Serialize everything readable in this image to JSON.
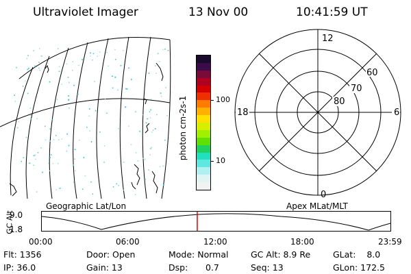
{
  "header": {
    "instrument": "Ultraviolet Imager",
    "date": "13 Nov 00",
    "time": "10:41:59 UT"
  },
  "left_panel": {
    "label": "Geographic Lat/Lon"
  },
  "colorbar": {
    "label": "photon cm-2s-1",
    "ticks": [
      "100",
      "10"
    ],
    "colors": [
      "#1a0a2e",
      "#3b0b4a",
      "#7a0a3a",
      "#b00020",
      "#d40000",
      "#ee3000",
      "#ff7a00",
      "#ffb000",
      "#ffe000",
      "#d8f000",
      "#a0f000",
      "#60e000",
      "#20d060",
      "#20e0c0",
      "#60e8e0",
      "#b0f0f0",
      "#e0f4f4",
      "#f2f2f2"
    ]
  },
  "right_panel": {
    "label": "Apex MLat/MLT",
    "mlt_labels": {
      "top": "12",
      "left": "18",
      "right": "6",
      "bottom": "0"
    },
    "lat_labels": [
      "60",
      "70",
      "80"
    ]
  },
  "timeline": {
    "ylabel": "GC Alt",
    "ymax": "9.0",
    "ymin": "1.8",
    "x_ticks": [
      "00:00",
      "06:00",
      "12:00",
      "18:00",
      "23:59"
    ],
    "current_time_hours": 10.7
  },
  "info": {
    "flt": "Flt: 1356",
    "ip": "IP: 36.0",
    "door": "Door: Open",
    "gain": "Gain: 13",
    "mode": "Mode: Normal",
    "dsp_label": "Dsp:",
    "dsp_value": "0.7",
    "gcalt": "GC Alt: 8.9 Re",
    "seq": "Seq: 13",
    "glat": "GLat:    8.0",
    "glon": "GLon: 172.5"
  }
}
